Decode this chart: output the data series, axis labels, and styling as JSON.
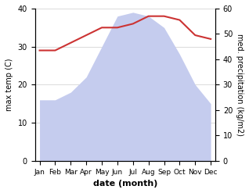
{
  "months": [
    "Jan",
    "Feb",
    "Mar",
    "Apr",
    "May",
    "Jun",
    "Jul",
    "Aug",
    "Sep",
    "Oct",
    "Nov",
    "Dec"
  ],
  "temp_values": [
    29,
    29,
    31,
    33,
    35,
    35,
    36,
    38,
    38,
    37,
    33,
    32
  ],
  "precip_values_left_scale": [
    16,
    16,
    18,
    22,
    30,
    38,
    39,
    38,
    35,
    28,
    20,
    15
  ],
  "temp_color": "#cc3333",
  "precip_fill_color": "#c5ccee",
  "xlabel": "date (month)",
  "ylabel_left": "max temp (C)",
  "ylabel_right": "med. precipitation (kg/m2)",
  "ylim_left": [
    0,
    40
  ],
  "ylim_right": [
    0,
    60
  ],
  "yticks_left": [
    0,
    10,
    20,
    30,
    40
  ],
  "yticks_right": [
    0,
    10,
    20,
    30,
    40,
    50,
    60
  ],
  "background_color": "#ffffff",
  "grid_color": "#cccccc",
  "temp_linewidth": 1.5,
  "xlabel_fontsize": 8,
  "ylabel_fontsize": 7,
  "tick_fontsize": 7,
  "month_fontsize": 6.5
}
